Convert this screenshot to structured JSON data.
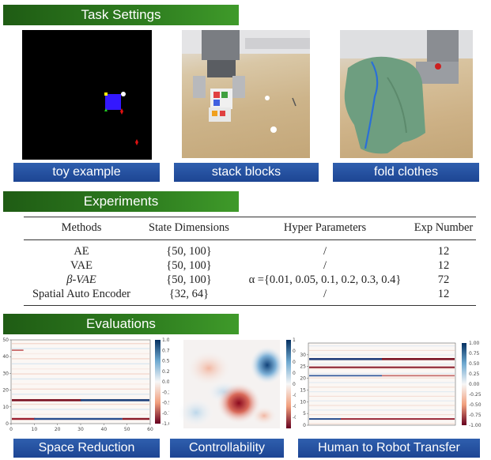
{
  "sections": {
    "task_settings": "Task Settings",
    "experiments": "Experiments",
    "evaluations": "Evaluations"
  },
  "tasks": [
    {
      "label": "toy example"
    },
    {
      "label": "stack blocks"
    },
    {
      "label": "fold clothes"
    }
  ],
  "table": {
    "headers": [
      "Methods",
      "State Dimensions",
      "Hyper Parameters",
      "Exp Number"
    ],
    "rows": [
      {
        "method": "AE",
        "dims": "{50, 100}",
        "hyper": "/",
        "exp": "12"
      },
      {
        "method": "VAE",
        "dims": "{50, 100}",
        "hyper": "/",
        "exp": "12"
      },
      {
        "method": "β-VAE",
        "dims": "{50, 100}",
        "hyper": "α ={0.01, 0.05, 0.1, 0.2, 0.3, 0.4}",
        "exp": "72"
      },
      {
        "method": "Spatial Auto Encoder",
        "dims": "{32, 64}",
        "hyper": "/",
        "exp": "12"
      }
    ]
  },
  "evaluations": [
    {
      "label": "Space Reduction"
    },
    {
      "label": "Controllability"
    },
    {
      "label": "Human to Robot Transfer"
    }
  ],
  "chart_data": [
    {
      "type": "heatmap",
      "title": "Space Reduction",
      "x_ticks": [
        "0",
        "10",
        "20",
        "30",
        "40",
        "50",
        "60"
      ],
      "y_ticks": [
        "0",
        "10",
        "20",
        "30",
        "40",
        "50"
      ],
      "xlim": [
        0,
        60
      ],
      "ylim": [
        0,
        50
      ],
      "colorbar_ticks": [
        "1.00",
        "0.75",
        "0.50",
        "0.25",
        "0.00",
        "-0.25",
        "-0.50",
        "-0.75",
        "-1.00"
      ],
      "clim": [
        -1,
        1
      ]
    },
    {
      "type": "heatmap",
      "title": "Controllability",
      "colorbar_ticks": [
        "1.00",
        "0.75",
        "0.50",
        "0.25",
        "0.00",
        "-0.25",
        "-0.50",
        "-0.75"
      ],
      "clim": [
        -1,
        1
      ]
    },
    {
      "type": "heatmap",
      "title": "Human to Robot Transfer",
      "y_ticks": [
        "0",
        "5",
        "10",
        "15",
        "20",
        "25",
        "30"
      ],
      "ylim": [
        0,
        35
      ],
      "colorbar_ticks": [
        "1.00",
        "0.75",
        "0.50",
        "0.25",
        "0.00",
        "-0.25",
        "-0.50",
        "-0.75",
        "-1.00"
      ],
      "clim": [
        -1,
        1
      ]
    }
  ]
}
